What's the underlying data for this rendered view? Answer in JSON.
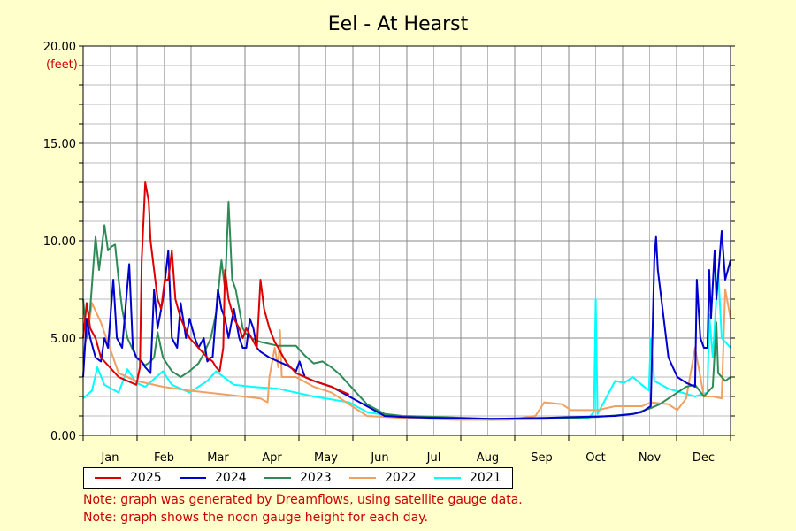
{
  "chart_data": {
    "type": "line",
    "title": "Eel - At Hearst",
    "ylabel": "(feet)",
    "ylim": [
      0,
      20
    ],
    "yticks": [
      "0.00",
      "5.00",
      "10.00",
      "15.00",
      "20.00"
    ],
    "months": [
      "Jan",
      "Feb",
      "Mar",
      "Apr",
      "May",
      "Jun",
      "Jul",
      "Aug",
      "Sep",
      "Oct",
      "Nov",
      "Dec"
    ],
    "grid": true,
    "legend_position": "bottom",
    "series": [
      {
        "name": "2021",
        "color": "#00ffff",
        "points": [
          [
            0,
            1.9
          ],
          [
            5,
            2.3
          ],
          [
            8,
            3.5
          ],
          [
            12,
            2.6
          ],
          [
            20,
            2.2
          ],
          [
            25,
            3.4
          ],
          [
            30,
            2.7
          ],
          [
            35,
            2.5
          ],
          [
            45,
            3.3
          ],
          [
            50,
            2.6
          ],
          [
            60,
            2.2
          ],
          [
            70,
            2.8
          ],
          [
            75,
            3.3
          ],
          [
            85,
            2.6
          ],
          [
            95,
            2.5
          ],
          [
            110,
            2.4
          ],
          [
            130,
            2.0
          ],
          [
            150,
            1.7
          ],
          [
            160,
            1.2
          ],
          [
            180,
            0.9
          ],
          [
            200,
            0.85
          ],
          [
            230,
            0.8
          ],
          [
            260,
            0.85
          ],
          [
            285,
            0.9
          ],
          [
            288,
            1.2
          ],
          [
            289,
            7.0
          ],
          [
            290,
            1.1
          ],
          [
            300,
            2.8
          ],
          [
            305,
            2.7
          ],
          [
            310,
            3.0
          ],
          [
            315,
            2.6
          ],
          [
            319,
            2.3
          ],
          [
            320,
            5.0
          ],
          [
            322,
            2.8
          ],
          [
            330,
            2.4
          ],
          [
            345,
            2.0
          ],
          [
            352,
            2.2
          ],
          [
            353,
            6.2
          ],
          [
            355,
            4.0
          ],
          [
            358,
            8.5
          ],
          [
            360,
            5.0
          ],
          [
            365,
            4.5
          ]
        ]
      },
      {
        "name": "2022",
        "color": "#f0a060",
        "points": [
          [
            0,
            4.2
          ],
          [
            3,
            5.5
          ],
          [
            5,
            6.8
          ],
          [
            10,
            5.8
          ],
          [
            20,
            3.2
          ],
          [
            30,
            2.8
          ],
          [
            45,
            2.5
          ],
          [
            60,
            2.3
          ],
          [
            80,
            2.1
          ],
          [
            100,
            1.9
          ],
          [
            104,
            1.7
          ],
          [
            105,
            3.0
          ],
          [
            108,
            4.5
          ],
          [
            110,
            3.5
          ],
          [
            111,
            5.4
          ],
          [
            112,
            3.0
          ],
          [
            120,
            3.0
          ],
          [
            130,
            2.5
          ],
          [
            140,
            2.2
          ],
          [
            150,
            1.6
          ],
          [
            160,
            1.0
          ],
          [
            180,
            0.9
          ],
          [
            210,
            0.8
          ],
          [
            240,
            0.8
          ],
          [
            255,
            1.0
          ],
          [
            260,
            1.7
          ],
          [
            270,
            1.6
          ],
          [
            275,
            1.3
          ],
          [
            290,
            1.3
          ],
          [
            300,
            1.5
          ],
          [
            315,
            1.5
          ],
          [
            320,
            1.7
          ],
          [
            330,
            1.6
          ],
          [
            335,
            1.3
          ],
          [
            340,
            1.9
          ],
          [
            345,
            4.5
          ],
          [
            350,
            2.0
          ],
          [
            355,
            2.0
          ],
          [
            360,
            1.9
          ],
          [
            362,
            7.5
          ],
          [
            365,
            6.0
          ]
        ]
      },
      {
        "name": "2023",
        "color": "#2e8b57",
        "points": [
          [
            0,
            7.0
          ],
          [
            2,
            5.0
          ],
          [
            4,
            6.5
          ],
          [
            6,
            9.0
          ],
          [
            7,
            10.2
          ],
          [
            9,
            8.5
          ],
          [
            12,
            10.8
          ],
          [
            14,
            9.5
          ],
          [
            16,
            9.7
          ],
          [
            18,
            9.8
          ],
          [
            20,
            8.0
          ],
          [
            22,
            6.5
          ],
          [
            25,
            5.0
          ],
          [
            30,
            4.0
          ],
          [
            35,
            3.6
          ],
          [
            38,
            3.8
          ],
          [
            40,
            4.0
          ],
          [
            42,
            5.3
          ],
          [
            45,
            4.0
          ],
          [
            50,
            3.3
          ],
          [
            55,
            3.0
          ],
          [
            60,
            3.3
          ],
          [
            65,
            3.7
          ],
          [
            68,
            4.2
          ],
          [
            72,
            5.0
          ],
          [
            75,
            6.3
          ],
          [
            78,
            9.0
          ],
          [
            80,
            7.5
          ],
          [
            82,
            12.0
          ],
          [
            84,
            8.0
          ],
          [
            86,
            7.5
          ],
          [
            88,
            6.5
          ],
          [
            90,
            5.5
          ],
          [
            92,
            5.2
          ],
          [
            95,
            5.0
          ],
          [
            100,
            4.8
          ],
          [
            110,
            4.6
          ],
          [
            120,
            4.6
          ],
          [
            125,
            4.1
          ],
          [
            130,
            3.7
          ],
          [
            135,
            3.8
          ],
          [
            140,
            3.5
          ],
          [
            145,
            3.1
          ],
          [
            150,
            2.6
          ],
          [
            160,
            1.6
          ],
          [
            170,
            1.1
          ],
          [
            180,
            1.0
          ],
          [
            200,
            0.95
          ],
          [
            230,
            0.85
          ],
          [
            260,
            0.85
          ],
          [
            290,
            0.95
          ],
          [
            310,
            1.1
          ],
          [
            320,
            1.4
          ],
          [
            325,
            1.6
          ],
          [
            335,
            2.2
          ],
          [
            340,
            2.5
          ],
          [
            345,
            2.6
          ],
          [
            350,
            2.0
          ],
          [
            355,
            2.5
          ],
          [
            357,
            5.8
          ],
          [
            358,
            3.2
          ],
          [
            362,
            2.8
          ],
          [
            365,
            3.0
          ]
        ]
      },
      {
        "name": "2024",
        "color": "#0000cc",
        "points": [
          [
            0,
            3.0
          ],
          [
            2,
            6.0
          ],
          [
            4,
            5.0
          ],
          [
            7,
            4.0
          ],
          [
            10,
            3.8
          ],
          [
            12,
            5.0
          ],
          [
            14,
            4.5
          ],
          [
            17,
            8.0
          ],
          [
            19,
            5.0
          ],
          [
            22,
            4.5
          ],
          [
            26,
            8.8
          ],
          [
            28,
            4.5
          ],
          [
            30,
            4.0
          ],
          [
            33,
            3.8
          ],
          [
            35,
            3.5
          ],
          [
            38,
            3.2
          ],
          [
            40,
            7.5
          ],
          [
            42,
            5.5
          ],
          [
            45,
            7.0
          ],
          [
            48,
            9.5
          ],
          [
            50,
            5.0
          ],
          [
            53,
            4.5
          ],
          [
            55,
            6.8
          ],
          [
            58,
            5.0
          ],
          [
            60,
            6.0
          ],
          [
            63,
            5.0
          ],
          [
            65,
            4.5
          ],
          [
            68,
            5.0
          ],
          [
            70,
            3.8
          ],
          [
            72,
            4.0
          ],
          [
            73,
            4.0
          ],
          [
            76,
            7.5
          ],
          [
            78,
            6.5
          ],
          [
            80,
            6.0
          ],
          [
            82,
            5.0
          ],
          [
            85,
            6.5
          ],
          [
            88,
            5.0
          ],
          [
            90,
            4.5
          ],
          [
            92,
            4.5
          ],
          [
            94,
            6.0
          ],
          [
            96,
            5.5
          ],
          [
            98,
            4.5
          ],
          [
            100,
            4.3
          ],
          [
            105,
            4.0
          ],
          [
            110,
            3.8
          ],
          [
            115,
            3.6
          ],
          [
            120,
            3.3
          ],
          [
            122,
            3.8
          ],
          [
            125,
            3.0
          ],
          [
            130,
            2.8
          ],
          [
            140,
            2.5
          ],
          [
            150,
            2.0
          ],
          [
            160,
            1.5
          ],
          [
            170,
            1.0
          ],
          [
            180,
            0.95
          ],
          [
            200,
            0.9
          ],
          [
            230,
            0.85
          ],
          [
            260,
            0.9
          ],
          [
            280,
            0.95
          ],
          [
            300,
            1.0
          ],
          [
            310,
            1.1
          ],
          [
            315,
            1.2
          ],
          [
            320,
            1.5
          ],
          [
            322,
            9.0
          ],
          [
            323,
            10.2
          ],
          [
            324,
            8.5
          ],
          [
            326,
            7.0
          ],
          [
            330,
            4.0
          ],
          [
            335,
            3.0
          ],
          [
            340,
            2.7
          ],
          [
            345,
            2.5
          ],
          [
            346,
            8.0
          ],
          [
            348,
            5.0
          ],
          [
            350,
            4.5
          ],
          [
            352,
            4.5
          ],
          [
            353,
            8.5
          ],
          [
            354,
            6.0
          ],
          [
            356,
            9.5
          ],
          [
            357,
            7.0
          ],
          [
            360,
            10.5
          ],
          [
            362,
            8.0
          ],
          [
            365,
            9.0
          ]
        ]
      },
      {
        "name": "2025",
        "color": "#dd0000",
        "points": [
          [
            0,
            5.0
          ],
          [
            2,
            6.8
          ],
          [
            4,
            5.5
          ],
          [
            7,
            5.0
          ],
          [
            10,
            4.0
          ],
          [
            15,
            3.5
          ],
          [
            20,
            3.0
          ],
          [
            25,
            2.8
          ],
          [
            30,
            2.6
          ],
          [
            32,
            3.5
          ],
          [
            33,
            9.0
          ],
          [
            35,
            13.0
          ],
          [
            37,
            12.0
          ],
          [
            38,
            10.0
          ],
          [
            40,
            8.5
          ],
          [
            42,
            7.0
          ],
          [
            44,
            6.5
          ],
          [
            46,
            8.0
          ],
          [
            48,
            8.0
          ],
          [
            50,
            9.5
          ],
          [
            52,
            7.0
          ],
          [
            55,
            6.0
          ],
          [
            60,
            5.0
          ],
          [
            65,
            4.5
          ],
          [
            70,
            4.0
          ],
          [
            73,
            3.8
          ],
          [
            75,
            3.5
          ],
          [
            77,
            3.3
          ],
          [
            79,
            4.5
          ],
          [
            80,
            8.5
          ],
          [
            82,
            7.0
          ],
          [
            85,
            6.0
          ],
          [
            88,
            5.5
          ],
          [
            90,
            5.0
          ],
          [
            92,
            5.5
          ],
          [
            95,
            5.0
          ],
          [
            98,
            4.5
          ],
          [
            100,
            8.0
          ],
          [
            102,
            6.5
          ],
          [
            105,
            5.5
          ],
          [
            108,
            4.8
          ],
          [
            110,
            4.5
          ],
          [
            113,
            4.0
          ],
          [
            115,
            3.7
          ],
          [
            120,
            3.2
          ],
          [
            130,
            2.8
          ],
          [
            140,
            2.5
          ],
          [
            145,
            2.3
          ],
          [
            150,
            2.1
          ]
        ]
      }
    ]
  },
  "notes": [
    "Note: graph was generated by Dreamflows, using satellite gauge data.",
    "Note: graph shows the noon gauge height for each day."
  ]
}
